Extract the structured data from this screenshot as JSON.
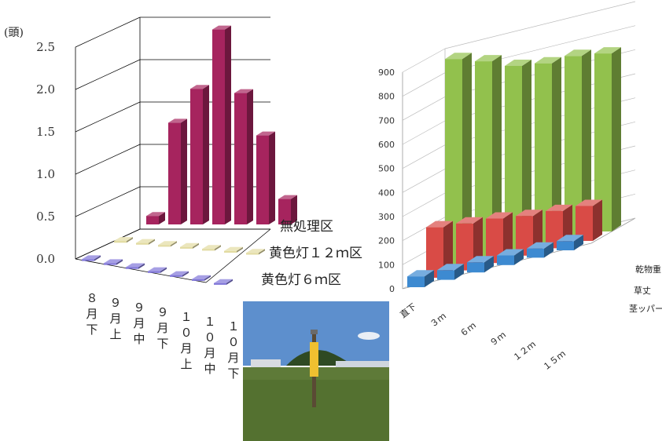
{
  "chart_data": [
    {
      "type": "bar",
      "subtype": "3d-column",
      "title": "",
      "ylabel": "(頭)",
      "ylim": [
        0,
        2.5
      ],
      "ytick_labels": [
        "0.0",
        "0.5",
        "1.0",
        "1.5",
        "2.0",
        "2.5"
      ],
      "categories": [
        "8月下",
        "9月上",
        "9月中",
        "9月下",
        "10月上",
        "10月中",
        "10月下"
      ],
      "category_labels": [
        "８\n月\n下",
        "９\n月\n上",
        "９\n月\n中",
        "９\n月\n下",
        "１\n０\n月\n上",
        "１\n０\n月\n中",
        "１\n０\n月\n下"
      ],
      "series": [
        {
          "name": "無処理区",
          "values": [
            0.1,
            1.2,
            1.6,
            2.3,
            1.55,
            1.05,
            0.3
          ]
        },
        {
          "name": "黄色灯１２ｍ区",
          "values": [
            0.02,
            0.02,
            0.02,
            0.02,
            0.02,
            0.02,
            0.02
          ]
        },
        {
          "name": "黄色灯６ｍ区",
          "values": [
            0.02,
            0.02,
            0.02,
            0.02,
            0.02,
            0.02,
            0.02
          ]
        }
      ],
      "colors": [
        "#a6245e",
        "#e2dba1",
        "#8076d8"
      ],
      "grid": true
    },
    {
      "type": "bar",
      "subtype": "3d-column",
      "title": "",
      "ylim": [
        0,
        900
      ],
      "ytick_labels": [
        "0",
        "100",
        "200",
        "300",
        "400",
        "500",
        "600",
        "700",
        "800",
        "900"
      ],
      "categories": [
        "直下",
        "3ｍ",
        "6ｍ",
        "9ｍ",
        "12ｍ",
        "15ｍ"
      ],
      "category_labels": [
        "直下",
        "３ｍ",
        "６ｍ",
        "９ｍ",
        "１２ｍ",
        "１５ｍ"
      ],
      "series": [
        {
          "name": "乾物重",
          "values": [
            870,
            830,
            780,
            760,
            760,
            740
          ]
        },
        {
          "name": "草丈",
          "values": [
            210,
            195,
            185,
            165,
            155,
            145
          ]
        },
        {
          "name": "茎ッパー",
          "values": [
            45,
            40,
            42,
            40,
            38,
            38
          ]
        }
      ],
      "colors": [
        "#92c14d",
        "#d94b46",
        "#3d8ad1"
      ],
      "grid": true
    }
  ],
  "photo": {
    "icon": "field-photo-with-yellow-lamp-pole",
    "sky": "#5d8fcd",
    "field": "#5e7a38",
    "pole": "#f0c030"
  }
}
